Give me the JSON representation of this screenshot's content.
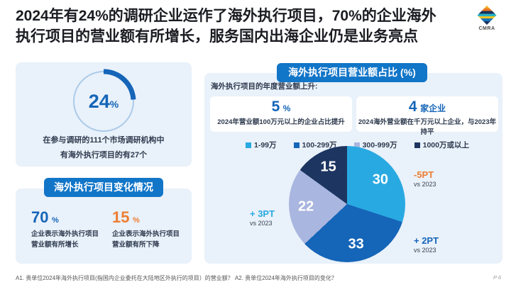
{
  "slide": {
    "title_line1": "2024年有24%的调研企业运作了海外执行项目，70%的企业海外",
    "title_line2": "执行项目的营业额有所增长，服务国内出海企业仍是业务亮点",
    "logo_text": "CMRA",
    "footnote": "A1. 贵单位2024年海外执行项目(指国内企业委托在大陆地区外执行的项目）的营业额？  A2. 贵单位2024年海外执行项目的变化？",
    "page_number": "P 6"
  },
  "left_panel": {
    "donut_value": "24",
    "donut_unit": "%",
    "caption_line1": "在参与调研的111个市场调研机构中",
    "caption_line2": "有海外执行项目的有27个",
    "section_header": "海外执行项目变化情况",
    "stats": [
      {
        "value": "70",
        "unit": "%",
        "color": "#1565b8",
        "caption_line1": "企业表示海外执行项目",
        "caption_line2": "营业额有所增长"
      },
      {
        "value": "15",
        "unit": "%",
        "color": "#ed7d31",
        "caption_line1": "企业表示海外执行项目",
        "caption_line2": "营业额有所下降"
      }
    ]
  },
  "right_panel": {
    "header": "海外执行项目营业额占比 (%)",
    "intro": "海外执行项目的年度营业额上升:",
    "highlights": [
      {
        "value": "5",
        "unit": "%",
        "caption": "2024年营业额100万元以上的企业占比提升"
      },
      {
        "value": "4",
        "unit": "家企业",
        "caption": "2024海外营业额在千万元以上企业，与2023年持平"
      }
    ],
    "annotations": [
      {
        "delta": "-5PT",
        "vs": "vs 2023",
        "color": "#ed7d31"
      },
      {
        "delta": "+ 3PT",
        "vs": "vs 2023",
        "color": "#29a9e1"
      },
      {
        "delta": "+ 2PT",
        "vs": "vs 2023",
        "color": "#1565b8"
      }
    ]
  },
  "colors": {
    "badge_blue": "#1175c8",
    "accent_blue": "#1565b8",
    "accent_orange": "#ed7d31",
    "card_bg": "#e9f1fa",
    "donut_ring": "#abcbe9"
  },
  "chart_data": [
    {
      "type": "pie",
      "variant": "donut-progress",
      "title": "",
      "values": [
        24
      ],
      "unit": "%",
      "ylim": [
        0,
        100
      ],
      "note": "在参与调研的111个市场调研机构中有海外执行项目的有27个"
    },
    {
      "type": "pie",
      "title": "海外执行项目营业额占比 (%)",
      "categories": [
        "1-99万",
        "100-299万",
        "300-999万",
        "1000万或以上"
      ],
      "values": [
        30,
        33,
        22,
        15
      ],
      "colors": [
        "#29a9e1",
        "#1565b8",
        "#a9b6df",
        "#1d3561"
      ],
      "legend_position": "top",
      "annotations": [
        {
          "category": "1-99万",
          "text": "-5PT vs 2023"
        },
        {
          "category": "300-999万",
          "text": "+ 3PT vs 2023"
        },
        {
          "category": "100-299万",
          "text": "+ 2PT vs 2023"
        }
      ]
    }
  ]
}
